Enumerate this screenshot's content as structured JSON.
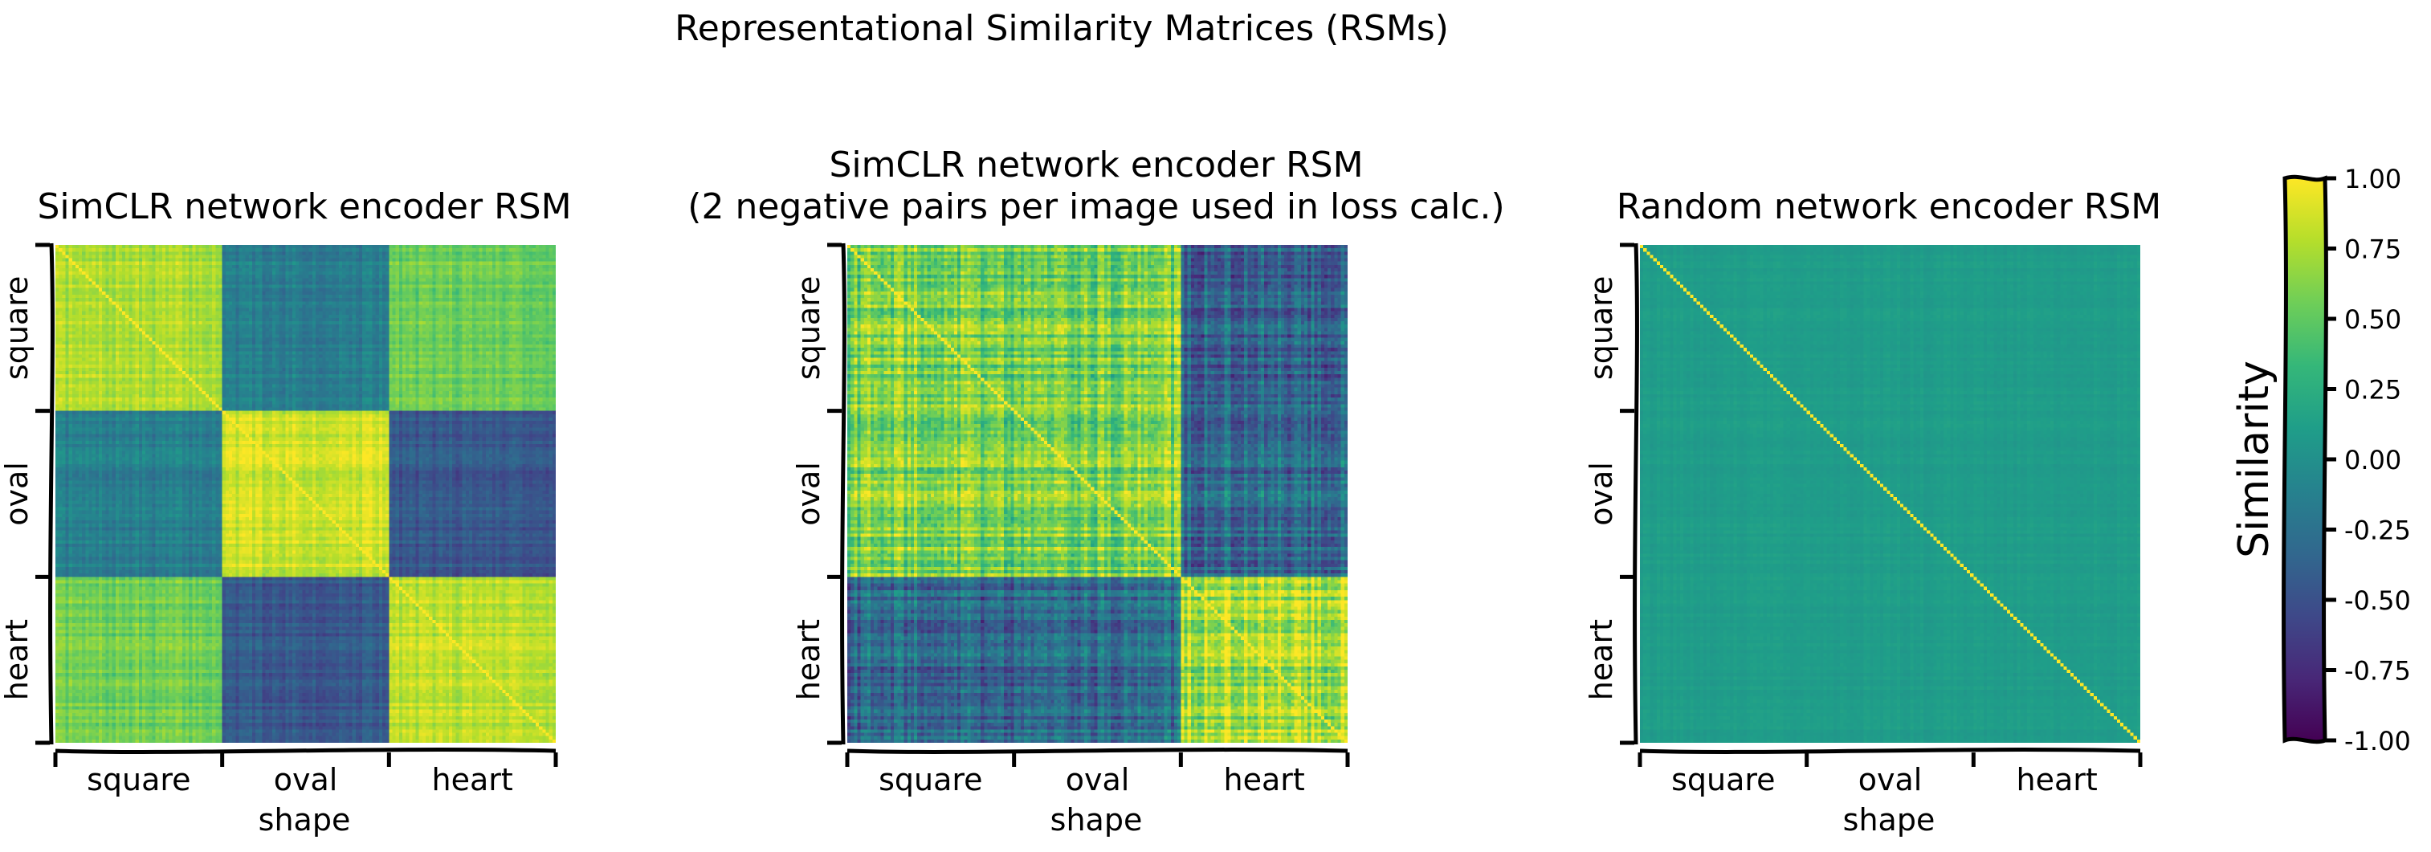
{
  "figure": {
    "suptitle": "Representational Similarity Matrices (RSMs)"
  },
  "chart_data": [
    {
      "type": "heatmap",
      "title_lines": [
        "SimCLR network encoder RSM"
      ],
      "xlabel": "shape",
      "ylabel": "",
      "categories": [
        "square",
        "oval",
        "heart"
      ],
      "block_means": [
        [
          0.75,
          -0.15,
          0.55
        ],
        [
          -0.15,
          0.85,
          -0.45
        ],
        [
          0.55,
          -0.45,
          0.8
        ]
      ],
      "noise": 0.18,
      "diagonal": 1.0,
      "seed": 7
    },
    {
      "type": "heatmap",
      "title_lines": [
        "SimCLR network encoder RSM",
        "(2 negative pairs per image used in loss calc.)"
      ],
      "xlabel": "shape",
      "ylabel": "",
      "categories": [
        "square",
        "oval",
        "heart"
      ],
      "block_means": [
        [
          0.6,
          0.6,
          -0.35
        ],
        [
          0.6,
          0.6,
          -0.3
        ],
        [
          -0.35,
          -0.3,
          0.75
        ]
      ],
      "noise": 0.42,
      "diagonal": 1.0,
      "seed": 19
    },
    {
      "type": "heatmap",
      "title_lines": [
        "Random network encoder RSM"
      ],
      "xlabel": "shape",
      "ylabel": "",
      "categories": [
        "square",
        "oval",
        "heart"
      ],
      "block_means": [
        [
          0.1,
          0.1,
          0.1
        ],
        [
          0.1,
          0.1,
          0.1
        ],
        [
          0.1,
          0.1,
          0.1
        ]
      ],
      "noise": 0.05,
      "diagonal": 1.0,
      "seed": 31
    }
  ],
  "colorbar": {
    "label": "Similarity",
    "range": [
      -1.0,
      1.0
    ],
    "ticks": [
      "1.00",
      "0.75",
      "0.50",
      "0.25",
      "0.00",
      "-0.25",
      "-0.50",
      "-0.75",
      "-1.00"
    ],
    "colormap": [
      "#440154",
      "#482878",
      "#3e4989",
      "#31688e",
      "#26828e",
      "#1f9e89",
      "#35b779",
      "#6ece58",
      "#b5de2b",
      "#fde725"
    ]
  }
}
